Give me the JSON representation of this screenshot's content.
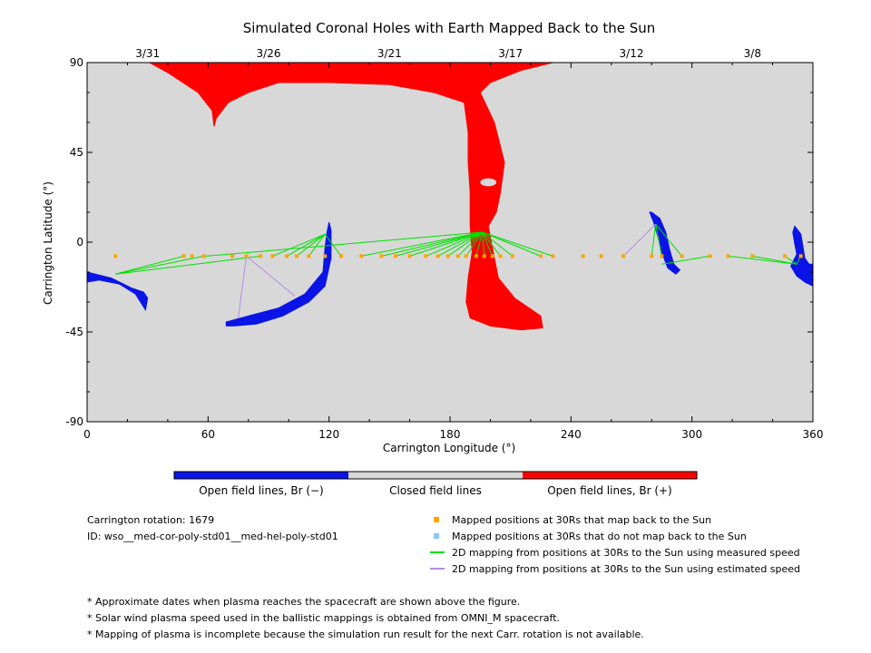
{
  "chart_data": {
    "type": "map",
    "title": "Simulated Coronal Holes with Earth Mapped Back to the Sun",
    "xlabel": "Carrington Longitude (°)",
    "ylabel": "Carrington Latitude (°)",
    "xlim": [
      0,
      360
    ],
    "ylim": [
      -90,
      90
    ],
    "x_ticks": [
      "0",
      "60",
      "120",
      "180",
      "240",
      "300",
      "360"
    ],
    "y_ticks": [
      "90",
      "45",
      "0",
      "-45",
      "-90"
    ],
    "x_tick_values": [
      0,
      60,
      120,
      180,
      240,
      300,
      360
    ],
    "y_tick_values": [
      90,
      45,
      0,
      -45,
      -90
    ],
    "top_axis_dates": [
      {
        "label": "3/31",
        "lon": 30
      },
      {
        "label": "3/26",
        "lon": 90
      },
      {
        "label": "3/21",
        "lon": 150
      },
      {
        "label": "3/17",
        "lon": 210
      },
      {
        "label": "3/12",
        "lon": 270
      },
      {
        "label": "3/8",
        "lon": 330
      }
    ],
    "colorbar": {
      "segments": [
        {
          "label": "Open field lines, Br (−)",
          "color": "#0a14e6"
        },
        {
          "label": "Closed field lines",
          "color": "#d8d8d8"
        },
        {
          "label": "Open field lines, Br (+)",
          "color": "#ff0000"
        }
      ]
    },
    "regions": [
      {
        "polarity": "positive",
        "color": "#ff0000",
        "outline": [
          [
            31,
            90
          ],
          [
            231,
            90
          ],
          [
            215,
            86
          ],
          [
            200,
            80
          ],
          [
            195,
            75
          ],
          [
            202,
            60
          ],
          [
            207,
            40
          ],
          [
            205,
            25
          ],
          [
            203,
            15
          ],
          [
            199,
            8
          ],
          [
            202,
            -8
          ],
          [
            204,
            -18
          ],
          [
            212,
            -28
          ],
          [
            225,
            -37
          ],
          [
            226,
            -43
          ],
          [
            215,
            -44
          ],
          [
            200,
            -42
          ],
          [
            190,
            -38
          ],
          [
            188,
            -30
          ],
          [
            189,
            -18
          ],
          [
            191,
            -5
          ],
          [
            190,
            8
          ],
          [
            190,
            25
          ],
          [
            189,
            40
          ],
          [
            189,
            55
          ],
          [
            187,
            70
          ],
          [
            172,
            75
          ],
          [
            150,
            79
          ],
          [
            120,
            80
          ],
          [
            95,
            80
          ],
          [
            80,
            75
          ],
          [
            70,
            70
          ],
          [
            64,
            62
          ],
          [
            63,
            58
          ],
          [
            62,
            66
          ],
          [
            55,
            75
          ],
          [
            40,
            85
          ]
        ]
      },
      {
        "polarity": "negative",
        "color": "#0a14e6",
        "outline": [
          [
            0,
            -15
          ],
          [
            12,
            -18
          ],
          [
            22,
            -23
          ],
          [
            28,
            -25
          ],
          [
            30,
            -28
          ],
          [
            29,
            -34
          ],
          [
            24,
            -26
          ],
          [
            16,
            -21
          ],
          [
            6,
            -19
          ],
          [
            0,
            -20
          ]
        ]
      },
      {
        "polarity": "negative",
        "color": "#0a14e6",
        "outline": [
          [
            69,
            -40
          ],
          [
            80,
            -37
          ],
          [
            95,
            -33
          ],
          [
            108,
            -26
          ],
          [
            117,
            -15
          ],
          [
            118,
            -3
          ],
          [
            119,
            5
          ],
          [
            120,
            10
          ],
          [
            121,
            6
          ],
          [
            121,
            -8
          ],
          [
            118,
            -22
          ],
          [
            110,
            -30
          ],
          [
            97,
            -37
          ],
          [
            84,
            -41
          ],
          [
            73,
            -42
          ],
          [
            69,
            -42
          ]
        ]
      },
      {
        "polarity": "negative",
        "color": "#0a14e6",
        "outline": [
          [
            280,
            15
          ],
          [
            284,
            12
          ],
          [
            287,
            5
          ],
          [
            289,
            -4
          ],
          [
            291,
            -11
          ],
          [
            294,
            -14
          ],
          [
            292,
            -16
          ],
          [
            288,
            -13
          ],
          [
            285,
            -5
          ],
          [
            283,
            3
          ],
          [
            281,
            10
          ],
          [
            279,
            15
          ]
        ]
      },
      {
        "polarity": "negative",
        "color": "#0a14e6",
        "outline": [
          [
            351,
            8
          ],
          [
            354,
            4
          ],
          [
            355,
            -2
          ],
          [
            356,
            -8
          ],
          [
            358,
            -11
          ],
          [
            360,
            -11
          ],
          [
            360,
            -22
          ],
          [
            356,
            -20
          ],
          [
            352,
            -17
          ],
          [
            349,
            -12
          ],
          [
            352,
            -6
          ],
          [
            351,
            -1
          ],
          [
            350,
            5
          ]
        ]
      }
    ],
    "holes": [
      {
        "polarity": "positive",
        "center": [
          199,
          30
        ],
        "radius_deg": [
          4,
          2
        ]
      }
    ],
    "series": [
      {
        "name": "Mapped positions at 30Rs that map back to the Sun",
        "color": "#ffa500",
        "marker": "square",
        "points": [
          [
            14,
            -7
          ],
          [
            48,
            -7
          ],
          [
            52,
            -7
          ],
          [
            58,
            -7
          ],
          [
            72,
            -7
          ],
          [
            79,
            -7
          ],
          [
            86,
            -7
          ],
          [
            92,
            -7
          ],
          [
            99,
            -7
          ],
          [
            104,
            -7
          ],
          [
            110,
            -7
          ],
          [
            118,
            -7
          ],
          [
            126,
            -7
          ],
          [
            136,
            -7
          ],
          [
            146,
            -7
          ],
          [
            153,
            -7
          ],
          [
            160,
            -7
          ],
          [
            168,
            -7
          ],
          [
            174,
            -7
          ],
          [
            179,
            -7
          ],
          [
            184,
            -7
          ],
          [
            188,
            -7
          ],
          [
            193,
            -7
          ],
          [
            197,
            -7
          ],
          [
            201,
            -7
          ],
          [
            205,
            -7
          ],
          [
            211,
            -7
          ],
          [
            225,
            -7
          ],
          [
            231,
            -7
          ],
          [
            246,
            -7
          ],
          [
            255,
            -7
          ],
          [
            266,
            -7
          ],
          [
            280,
            -7
          ],
          [
            285,
            -7
          ],
          [
            295,
            -7
          ],
          [
            309,
            -7
          ],
          [
            318,
            -7
          ],
          [
            330,
            -7
          ],
          [
            346,
            -7
          ],
          [
            354,
            -7
          ]
        ]
      },
      {
        "name": "Mapped positions at 30Rs that do not map back to the Sun",
        "color": "#87c8ff",
        "marker": "square",
        "points": []
      },
      {
        "name": "2D mapping from positions at 30Rs to the Sun using measured speed",
        "color": "#00e000",
        "type": "line",
        "segments": [
          [
            [
              14,
              -16
            ],
            [
              48,
              -7
            ]
          ],
          [
            [
              14,
              -16
            ],
            [
              58,
              -7
            ]
          ],
          [
            [
              14,
              -16
            ],
            [
              86,
              -7
            ]
          ],
          [
            [
              118,
              4
            ],
            [
              92,
              -7
            ]
          ],
          [
            [
              118,
              4
            ],
            [
              99,
              -7
            ]
          ],
          [
            [
              118,
              4
            ],
            [
              104,
              -7
            ]
          ],
          [
            [
              118,
              4
            ],
            [
              110,
              -7
            ]
          ],
          [
            [
              118,
              4
            ],
            [
              126,
              -7
            ]
          ],
          [
            [
              196,
              5
            ],
            [
              59,
              -7
            ]
          ],
          [
            [
              196,
              5
            ],
            [
              136,
              -7
            ]
          ],
          [
            [
              196,
              5
            ],
            [
              146,
              -7
            ]
          ],
          [
            [
              196,
              5
            ],
            [
              153,
              -7
            ]
          ],
          [
            [
              196,
              5
            ],
            [
              160,
              -7
            ]
          ],
          [
            [
              196,
              5
            ],
            [
              168,
              -7
            ]
          ],
          [
            [
              196,
              5
            ],
            [
              174,
              -7
            ]
          ],
          [
            [
              196,
              5
            ],
            [
              179,
              -7
            ]
          ],
          [
            [
              196,
              5
            ],
            [
              184,
              -7
            ]
          ],
          [
            [
              196,
              5
            ],
            [
              188,
              -7
            ]
          ],
          [
            [
              196,
              5
            ],
            [
              193,
              -7
            ]
          ],
          [
            [
              196,
              5
            ],
            [
              197,
              -7
            ]
          ],
          [
            [
              196,
              5
            ],
            [
              201,
              -7
            ]
          ],
          [
            [
              196,
              5
            ],
            [
              205,
              -7
            ]
          ],
          [
            [
              196,
              5
            ],
            [
              211,
              -7
            ]
          ],
          [
            [
              196,
              5
            ],
            [
              225,
              -7
            ]
          ],
          [
            [
              196,
              5
            ],
            [
              231,
              -7
            ]
          ],
          [
            [
              282,
              9
            ],
            [
              280,
              -7
            ]
          ],
          [
            [
              282,
              9
            ],
            [
              285,
              -7
            ]
          ],
          [
            [
              282,
              9
            ],
            [
              295,
              -7
            ]
          ],
          [
            [
              285,
              -11
            ],
            [
              309,
              -7
            ]
          ],
          [
            [
              352,
              -11
            ],
            [
              318,
              -7
            ]
          ],
          [
            [
              352,
              -11
            ],
            [
              330,
              -7
            ]
          ],
          [
            [
              352,
              -11
            ],
            [
              346,
              -7
            ]
          ],
          [
            [
              352,
              -11
            ],
            [
              354,
              -7
            ]
          ]
        ]
      },
      {
        "name": "2D mapping from positions at 30Rs to the Sun using estimated speed",
        "color": "#b48ce6",
        "type": "line",
        "segments": [
          [
            [
              75,
              -38
            ],
            [
              79,
              -7
            ]
          ],
          [
            [
              103,
              -27
            ],
            [
              79,
              -7
            ]
          ],
          [
            [
              282,
              9
            ],
            [
              266,
              -7
            ]
          ]
        ]
      }
    ]
  },
  "info": {
    "carrington_rotation": "Carrington rotation: 1679",
    "model_id": "ID: wso__med-cor-poly-std01__med-hel-poly-std01"
  },
  "legend": [
    {
      "label": "Mapped positions at 30Rs that map back to the Sun",
      "color": "#ffa500",
      "kind": "square"
    },
    {
      "label": "Mapped positions at 30Rs that do not map back to the Sun",
      "color": "#87c8ff",
      "kind": "square"
    },
    {
      "label": "2D mapping from positions at 30Rs to the Sun using measured speed",
      "color": "#00e000",
      "kind": "line"
    },
    {
      "label": "2D mapping from positions at 30Rs to the Sun using estimated speed",
      "color": "#b48ce6",
      "kind": "line"
    }
  ],
  "footnotes": [
    "* Approximate dates when plasma reaches the spacecraft are shown above the figure.",
    "* Solar wind plasma speed used in the ballistic mappings is obtained from OMNI_M spacecraft.",
    "* Mapping of plasma is incomplete because the simulation run result for the next Carr. rotation is not available."
  ],
  "colors": {
    "background": "#d8d8d8",
    "positive": "#ff0000",
    "negative": "#0a14e6"
  }
}
